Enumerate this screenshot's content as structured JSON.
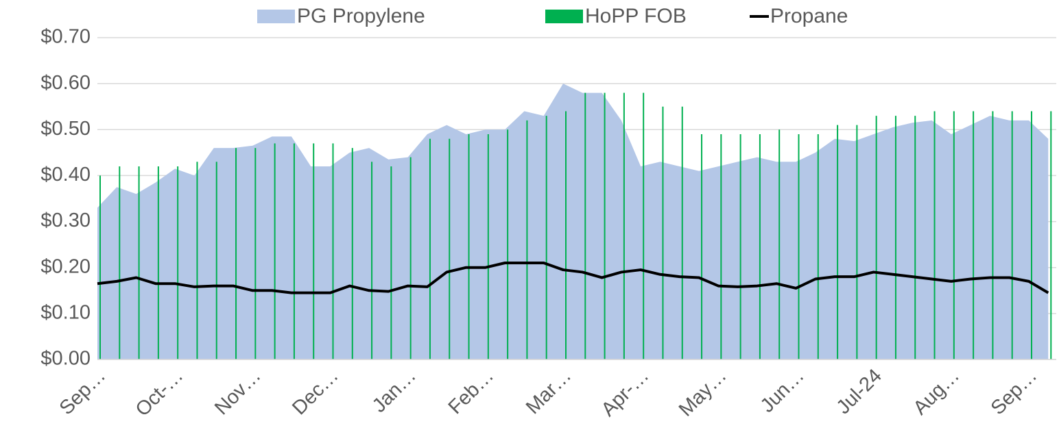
{
  "chart_data": {
    "type": "combo",
    "categories": [
      "Sep…",
      null,
      null,
      null,
      "Oct-…",
      null,
      null,
      null,
      "Nov…",
      null,
      null,
      null,
      "Dec…",
      null,
      null,
      null,
      "Jan…",
      null,
      null,
      null,
      "Feb…",
      null,
      null,
      null,
      "Mar…",
      null,
      null,
      null,
      "Apr-…",
      null,
      null,
      null,
      "May…",
      null,
      null,
      null,
      "Jun…",
      null,
      null,
      null,
      "Jul-24",
      null,
      null,
      null,
      "Aug…",
      null,
      null,
      null,
      "Sep…",
      null
    ],
    "series": [
      {
        "name": "PG Propylene",
        "kind": "area",
        "color": "#b4c7e7",
        "values": [
          0.33,
          0.375,
          0.36,
          0.385,
          0.415,
          0.4,
          0.46,
          0.46,
          0.465,
          0.485,
          0.485,
          0.42,
          0.42,
          0.45,
          0.46,
          0.435,
          0.44,
          0.49,
          0.51,
          0.49,
          0.5,
          0.5,
          0.54,
          0.53,
          0.6,
          0.58,
          0.58,
          0.52,
          0.42,
          0.43,
          0.42,
          0.41,
          0.42,
          0.43,
          0.44,
          0.43,
          0.43,
          0.45,
          0.48,
          0.475,
          0.49,
          0.505,
          0.515,
          0.52,
          0.49,
          0.51,
          0.53,
          0.52,
          0.52,
          0.48
        ]
      },
      {
        "name": "HoPP FOB",
        "kind": "bar",
        "color": "#00b050",
        "values": [
          0.4,
          0.42,
          0.42,
          0.42,
          0.42,
          0.43,
          0.43,
          0.46,
          0.46,
          0.47,
          0.47,
          0.47,
          0.47,
          0.46,
          0.43,
          0.42,
          0.44,
          0.48,
          0.48,
          0.49,
          0.49,
          0.5,
          0.52,
          0.53,
          0.54,
          0.58,
          0.58,
          0.58,
          0.58,
          0.55,
          0.55,
          0.49,
          0.49,
          0.49,
          0.49,
          0.5,
          0.49,
          0.49,
          0.51,
          0.51,
          0.53,
          0.53,
          0.53,
          0.54,
          0.54,
          0.54,
          0.54,
          0.54,
          0.54,
          0.54
        ]
      },
      {
        "name": "Propane",
        "kind": "line",
        "color": "#000000",
        "values": [
          0.165,
          0.17,
          0.178,
          0.165,
          0.165,
          0.158,
          0.16,
          0.16,
          0.15,
          0.15,
          0.145,
          0.145,
          0.145,
          0.16,
          0.15,
          0.148,
          0.16,
          0.158,
          0.19,
          0.2,
          0.2,
          0.21,
          0.21,
          0.21,
          0.195,
          0.19,
          0.178,
          0.19,
          0.195,
          0.185,
          0.18,
          0.178,
          0.16,
          0.158,
          0.16,
          0.165,
          0.155,
          0.175,
          0.18,
          0.18,
          0.19,
          0.185,
          0.18,
          0.175,
          0.17,
          0.175,
          0.178,
          0.178,
          0.17,
          0.145
        ]
      }
    ],
    "ylim": [
      0,
      0.7
    ],
    "yticks": [
      {
        "value": 0,
        "label": "$0.00"
      },
      {
        "value": 0.1,
        "label": "$0.10"
      },
      {
        "value": 0.2,
        "label": "$0.20"
      },
      {
        "value": 0.3,
        "label": "$0.30"
      },
      {
        "value": 0.4,
        "label": "$0.40"
      },
      {
        "value": 0.5,
        "label": "$0.50"
      },
      {
        "value": 0.6,
        "label": "$0.60"
      },
      {
        "value": 0.7,
        "label": "$0.70"
      }
    ],
    "grid": true,
    "legend": "top"
  }
}
